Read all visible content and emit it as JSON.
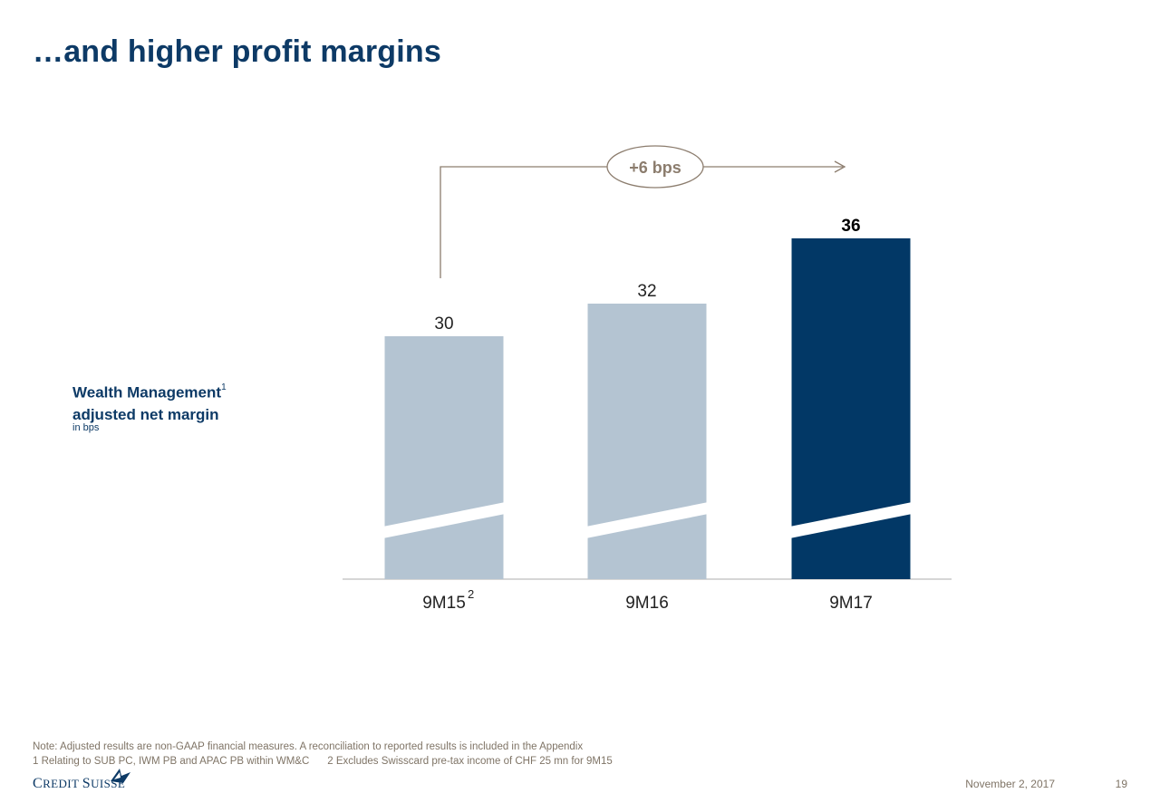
{
  "title": "…and higher profit margins",
  "metric": {
    "label_line1": "Wealth Management",
    "label_sup": "1",
    "label_line2": "adjusted net margin",
    "unit": "in bps"
  },
  "chart_data": {
    "type": "bar",
    "categories": [
      "9M15",
      "9M16",
      "9M17"
    ],
    "category_superscripts": [
      "2",
      "",
      ""
    ],
    "values": [
      30,
      32,
      36
    ],
    "value_labels": [
      "30",
      "32",
      "36"
    ],
    "ylabel": "in bps",
    "axis_break": true,
    "colors": [
      "#b4c4d2",
      "#b4c4d2",
      "#023866"
    ],
    "highlight_index": 2,
    "annotation": {
      "text": "+6 bps",
      "from": "9M15",
      "to": "9M17"
    },
    "axis_color": "#c8c8c8",
    "annotation_color": "#8c7d6e"
  },
  "footer": {
    "note": "Note: Adjusted results are non-GAAP financial measures. A reconciliation to reported results is included in the Appendix",
    "footnote1": "1 Relating to SUB PC, IWM PB and APAC PB within WM&C",
    "footnote2": "2 Excludes Swisscard pre-tax income of CHF 25 mn for 9M15",
    "logo_text": "Credit Suisse",
    "date": "November 2, 2017",
    "page": "19"
  }
}
